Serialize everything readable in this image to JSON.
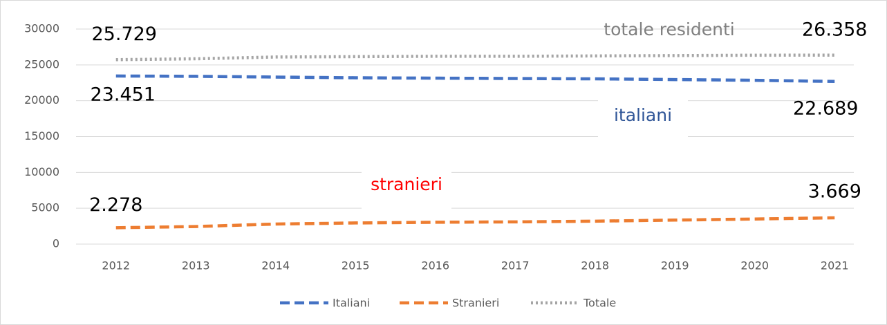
{
  "chart_data": {
    "type": "line",
    "categories": [
      "2012",
      "2013",
      "2014",
      "2015",
      "2016",
      "2017",
      "2018",
      "2019",
      "2020",
      "2021"
    ],
    "series": [
      {
        "name": "Italiani",
        "color": "#4472c4",
        "dash": "dashed",
        "values": [
          23451,
          23400,
          23300,
          23200,
          23150,
          23100,
          23050,
          22950,
          22850,
          22689
        ],
        "value_labels": [
          "23.451",
          null,
          null,
          null,
          null,
          null,
          null,
          null,
          null,
          "22.689"
        ]
      },
      {
        "name": "Stranieri",
        "color": "#ed7d31",
        "dash": "dashed",
        "values": [
          2278,
          2450,
          2800,
          2950,
          3050,
          3100,
          3200,
          3350,
          3500,
          3669
        ],
        "value_labels": [
          "2.278",
          null,
          null,
          null,
          null,
          null,
          null,
          null,
          null,
          "3.669"
        ]
      },
      {
        "name": "Totale",
        "color": "#a5a5a5",
        "dash": "dotted",
        "values": [
          25729,
          25850,
          26100,
          26150,
          26200,
          26200,
          26250,
          26300,
          26350,
          26358
        ],
        "value_labels": [
          "25.729",
          null,
          null,
          null,
          null,
          null,
          null,
          null,
          null,
          "26.358"
        ]
      }
    ],
    "annotations": [
      {
        "text": "totale residenti",
        "color": "#808080"
      },
      {
        "text": "italiani",
        "color": "#2f5597"
      },
      {
        "text": "stranieri",
        "color": "#ff0000"
      }
    ],
    "ylim": [
      0,
      30000
    ],
    "yticks": [
      0,
      5000,
      10000,
      15000,
      20000,
      25000,
      30000
    ],
    "grid": true,
    "legend": "bottom"
  }
}
